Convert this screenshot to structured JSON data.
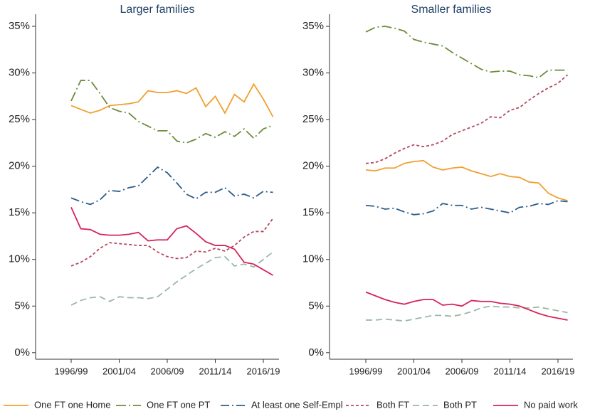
{
  "chart_data": [
    {
      "type": "line",
      "title": "Larger families",
      "categories": [
        "1996/99",
        null,
        null,
        null,
        null,
        "2001/04",
        null,
        null,
        null,
        null,
        "2006/09",
        null,
        null,
        null,
        null,
        "2011/14",
        null,
        null,
        null,
        null,
        "2016/19",
        null
      ],
      "ylim": [
        -0.7,
        36.3
      ],
      "yticks": [
        {
          "value": 0,
          "label": "0%"
        },
        {
          "value": 5,
          "label": "5%"
        },
        {
          "value": 10,
          "label": "10%"
        },
        {
          "value": 15,
          "label": "15%"
        },
        {
          "value": 20,
          "label": "20%"
        },
        {
          "value": 25,
          "label": "25%"
        },
        {
          "value": 30,
          "label": "30%"
        },
        {
          "value": 35,
          "label": "35%"
        }
      ],
      "series": [
        {
          "name": "One FT one Home",
          "color": "#f0a030",
          "values": [
            26.5,
            26.1,
            25.7,
            26.0,
            26.5,
            26.6,
            26.7,
            26.9,
            28.1,
            27.9,
            27.9,
            28.1,
            27.8,
            28.4,
            26.4,
            27.5,
            25.7,
            27.7,
            26.9,
            28.8,
            27.2,
            25.3
          ]
        },
        {
          "name": "One FT one PT",
          "color": "#6e8b3d",
          "values": [
            27.0,
            29.2,
            29.2,
            27.8,
            26.3,
            25.9,
            25.7,
            24.8,
            24.3,
            23.8,
            23.8,
            22.7,
            22.5,
            22.9,
            23.5,
            23.1,
            23.7,
            23.2,
            24.0,
            23.0,
            24.0,
            24.4
          ]
        },
        {
          "name": "At least one Self-Empl",
          "color": "#2e5c8a",
          "values": [
            16.6,
            16.2,
            15.9,
            16.4,
            17.4,
            17.3,
            17.7,
            17.9,
            18.9,
            19.9,
            19.3,
            18.2,
            17.0,
            16.5,
            17.2,
            17.2,
            17.7,
            16.8,
            17.0,
            16.6,
            17.3,
            17.2
          ]
        },
        {
          "name": "Both FT",
          "color": "#b5485e",
          "values": [
            9.3,
            9.7,
            10.3,
            11.2,
            11.8,
            11.7,
            11.6,
            11.5,
            11.5,
            10.8,
            10.3,
            10.1,
            10.2,
            10.9,
            10.8,
            11.2,
            10.9,
            11.5,
            12.4,
            13.0,
            13.0,
            14.4
          ]
        },
        {
          "name": "Both PT",
          "color": "#9ab8a4",
          "values": [
            5.1,
            5.6,
            5.9,
            6.0,
            5.5,
            6.0,
            5.9,
            5.9,
            5.8,
            6.0,
            6.8,
            7.6,
            8.3,
            9.0,
            9.6,
            10.2,
            10.3,
            9.3,
            9.5,
            9.2,
            10.0,
            10.8
          ]
        },
        {
          "name": "No paid work",
          "color": "#d6245a",
          "values": [
            15.6,
            13.3,
            13.2,
            12.7,
            12.6,
            12.6,
            12.7,
            12.9,
            12.0,
            12.1,
            12.1,
            13.3,
            13.6,
            12.8,
            11.9,
            11.5,
            11.5,
            11.1,
            9.7,
            9.5,
            8.9,
            8.3
          ]
        }
      ]
    },
    {
      "type": "line",
      "title": "Smaller families",
      "categories": [
        "1996/99",
        null,
        null,
        null,
        null,
        "2001/04",
        null,
        null,
        null,
        null,
        "2006/09",
        null,
        null,
        null,
        null,
        "2011/14",
        null,
        null,
        null,
        null,
        "2016/19",
        null
      ],
      "ylim": [
        -0.7,
        36.3
      ],
      "yticks": [
        {
          "value": 0,
          "label": "0%"
        },
        {
          "value": 5,
          "label": "5%"
        },
        {
          "value": 10,
          "label": "10%"
        },
        {
          "value": 15,
          "label": "15%"
        },
        {
          "value": 20,
          "label": "20%"
        },
        {
          "value": 25,
          "label": "25%"
        },
        {
          "value": 30,
          "label": "30%"
        },
        {
          "value": 35,
          "label": "35%"
        }
      ],
      "series": [
        {
          "color": "#f0a030",
          "values": [
            19.6,
            19.5,
            19.8,
            19.8,
            20.3,
            20.5,
            20.6,
            19.9,
            19.6,
            19.8,
            19.9,
            19.5,
            19.2,
            18.9,
            19.2,
            18.9,
            18.8,
            18.3,
            18.2,
            17.1,
            16.6,
            16.3
          ]
        },
        {
          "color": "#6e8b3d",
          "values": [
            34.4,
            34.9,
            35.0,
            34.8,
            34.5,
            33.6,
            33.3,
            33.1,
            32.9,
            32.2,
            31.6,
            31.0,
            30.4,
            30.1,
            30.2,
            30.2,
            29.8,
            29.7,
            29.5,
            30.3,
            30.3,
            30.3
          ]
        },
        {
          "color": "#2e5c8a",
          "values": [
            15.8,
            15.7,
            15.4,
            15.5,
            15.1,
            14.8,
            14.9,
            15.2,
            16.0,
            15.8,
            15.8,
            15.4,
            15.6,
            15.4,
            15.2,
            15.0,
            15.6,
            15.7,
            16.0,
            15.9,
            16.3,
            16.2
          ]
        },
        {
          "color": "#b5485e",
          "values": [
            20.3,
            20.4,
            20.8,
            21.4,
            21.9,
            22.3,
            22.1,
            22.3,
            22.7,
            23.4,
            23.8,
            24.2,
            24.6,
            25.3,
            25.2,
            26.0,
            26.3,
            27.1,
            27.8,
            28.4,
            28.9,
            29.8
          ]
        },
        {
          "color": "#9ab8a4",
          "values": [
            3.5,
            3.5,
            3.6,
            3.5,
            3.4,
            3.6,
            3.8,
            4.0,
            4.0,
            3.9,
            4.1,
            4.4,
            4.8,
            5.0,
            4.9,
            4.9,
            4.8,
            4.8,
            4.9,
            4.7,
            4.5,
            4.3
          ]
        },
        {
          "color": "#d6245a",
          "values": [
            6.5,
            6.1,
            5.7,
            5.4,
            5.2,
            5.5,
            5.7,
            5.7,
            5.1,
            5.2,
            5.0,
            5.6,
            5.5,
            5.5,
            5.3,
            5.2,
            5.0,
            4.6,
            4.2,
            3.9,
            3.7,
            3.5
          ]
        }
      ]
    }
  ]
}
